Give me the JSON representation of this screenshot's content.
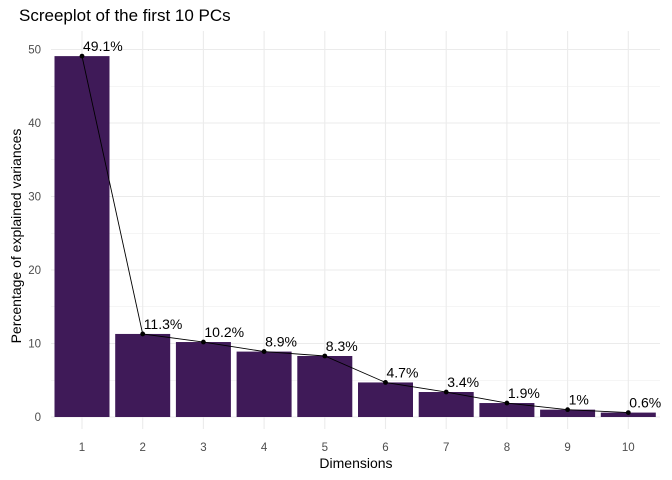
{
  "chart_data": {
    "type": "bar",
    "title": "Screeplot of the first 10 PCs",
    "xlabel": "Dimensions",
    "ylabel": "Percentage of explained variances",
    "categories": [
      "1",
      "2",
      "3",
      "4",
      "5",
      "6",
      "7",
      "8",
      "9",
      "10"
    ],
    "values": [
      49.1,
      11.3,
      10.2,
      8.9,
      8.3,
      4.7,
      3.4,
      1.9,
      1.0,
      0.6
    ],
    "labels": [
      "49.1%",
      "11.3%",
      "10.2%",
      "8.9%",
      "8.3%",
      "4.7%",
      "3.4%",
      "1.9%",
      "1%",
      "0.6%"
    ],
    "line_overlay": true,
    "ylim": [
      0,
      52
    ],
    "yticks": [
      0,
      10,
      20,
      30,
      40,
      50
    ],
    "grid": true,
    "colors": {
      "bar": "#3f1a58",
      "line": "#000000",
      "grid": "#ebebeb",
      "tick_text": "#4d4d4d"
    }
  }
}
